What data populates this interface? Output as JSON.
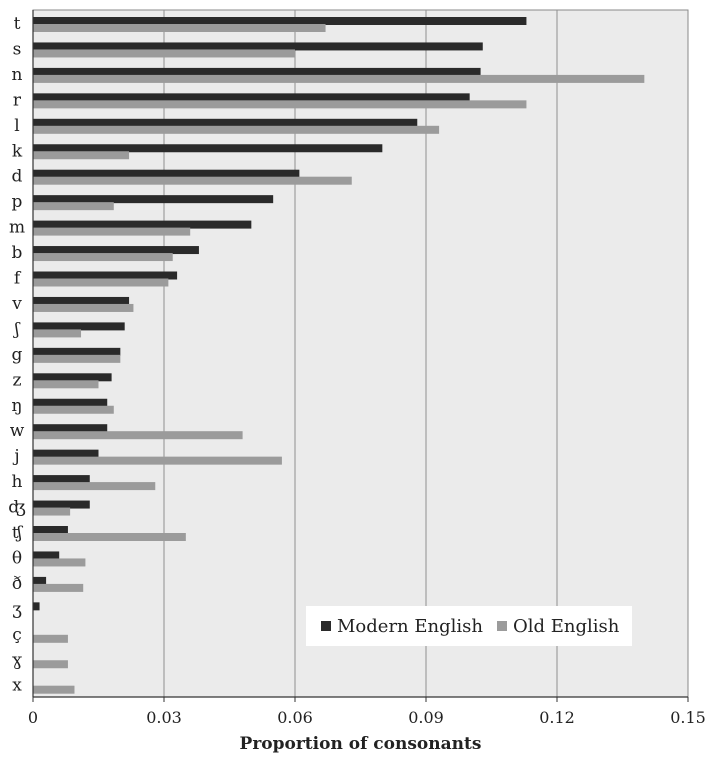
{
  "chart_data": {
    "type": "bar",
    "orientation": "horizontal",
    "xlabel": "Proportion of consonants",
    "xlim": [
      0,
      0.15
    ],
    "xticks": [
      "0",
      "0.03",
      "0.06",
      "0.09",
      "0.12",
      "0.15"
    ],
    "categories": [
      "t",
      "s",
      "n",
      "r",
      "l",
      "k",
      "d",
      "p",
      "m",
      "b",
      "f",
      "v",
      "ʃ",
      "g",
      "z",
      "ŋ",
      "w",
      "j",
      "h",
      "ʤ",
      "ʧ",
      "θ",
      "ð",
      "ʒ",
      "ç",
      "ɣ",
      "x"
    ],
    "series": [
      {
        "name": "Modern English",
        "color": "#2a2a2a",
        "values": [
          0.113,
          0.103,
          0.1025,
          0.1,
          0.088,
          0.08,
          0.061,
          0.055,
          0.05,
          0.038,
          0.033,
          0.022,
          0.021,
          0.02,
          0.018,
          0.017,
          0.017,
          0.015,
          0.013,
          0.013,
          0.008,
          0.006,
          0.003,
          0.0015,
          0,
          0,
          0
        ]
      },
      {
        "name": "Old English",
        "color": "#9b9b9b",
        "values": [
          0.067,
          0.06,
          0.14,
          0.113,
          0.093,
          0.022,
          0.073,
          0.0185,
          0.036,
          0.032,
          0.031,
          0.023,
          0.011,
          0.02,
          0.015,
          0.0185,
          0.048,
          0.057,
          0.028,
          0.0085,
          0.035,
          0.012,
          0.0115,
          0,
          0.008,
          0.008,
          0.0095
        ]
      }
    ],
    "grid": "vertical",
    "legend_position": "bottom-right",
    "plot_background": "#ebebeb"
  }
}
